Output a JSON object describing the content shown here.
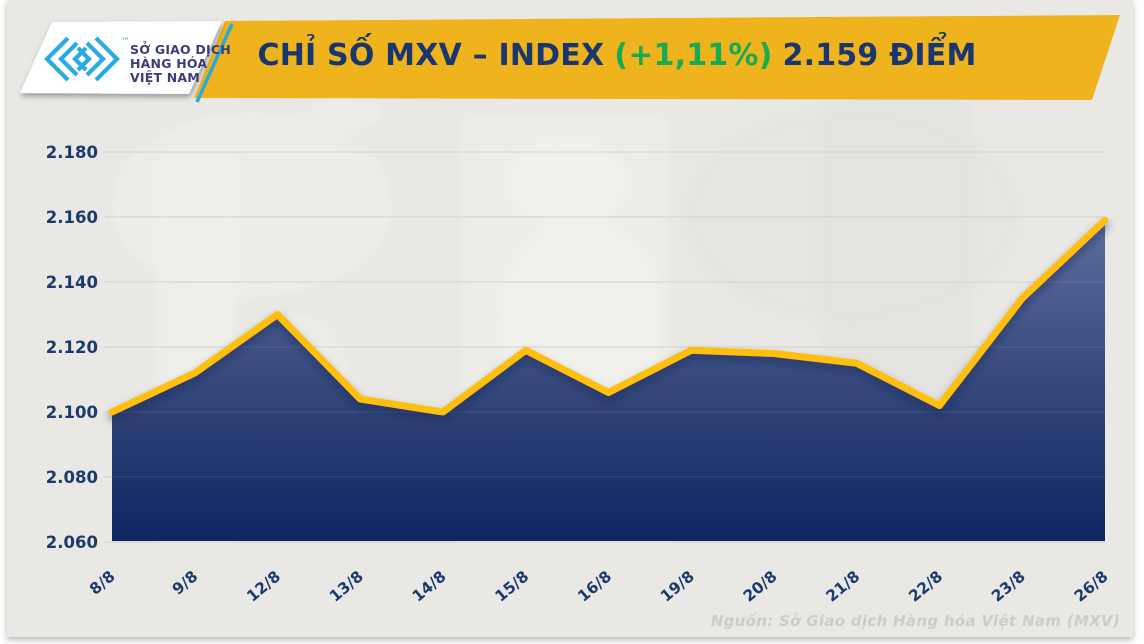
{
  "header": {
    "logo": {
      "org_name_lines": [
        "SỞ GIAO DỊCH",
        "HÀNG HÓA",
        "VIỆT NAM"
      ],
      "trademark": "™",
      "mark_color": "#29abe2",
      "text_color": "#3b3d78"
    },
    "banner": {
      "title": "CHỈ SỐ MXV – INDEX",
      "change": "(+1,11%)",
      "value": "2.159 ĐIỂM",
      "background": "#efb31e",
      "title_color": "#1a366e",
      "change_color": "#19ab52"
    }
  },
  "chart_data": {
    "type": "area",
    "title": "CHỈ SỐ MXV – INDEX (+1,11%) 2.159 ĐIỂM",
    "categories": [
      "8/8",
      "9/8",
      "12/8",
      "13/8",
      "14/8",
      "15/8",
      "16/8",
      "19/8",
      "20/8",
      "21/8",
      "22/8",
      "23/8",
      "26/8"
    ],
    "values": [
      2100,
      2112,
      2130,
      2104,
      2100,
      2119,
      2106,
      2119,
      2118,
      2115,
      2102,
      2135,
      2159
    ],
    "unit": "điểm",
    "xlabel": "",
    "ylabel": "",
    "ylim": [
      2060,
      2180
    ],
    "yticks": [
      2060,
      2080,
      2100,
      2120,
      2140,
      2160,
      2180
    ],
    "grid": true,
    "legend": false,
    "line_color": "#ffc010",
    "area_gradient_top": "#5d6fa0",
    "area_gradient_mid": "#2e4277",
    "area_gradient_bottom": "#0d2460",
    "gridline_color": "#cdcdca",
    "axis_label_color": "#1c3a6e"
  },
  "footer": {
    "source": "Nguồn: Sở Giao dịch Hàng hóa Việt Nam (MXV)",
    "color": "#ccccc9"
  }
}
